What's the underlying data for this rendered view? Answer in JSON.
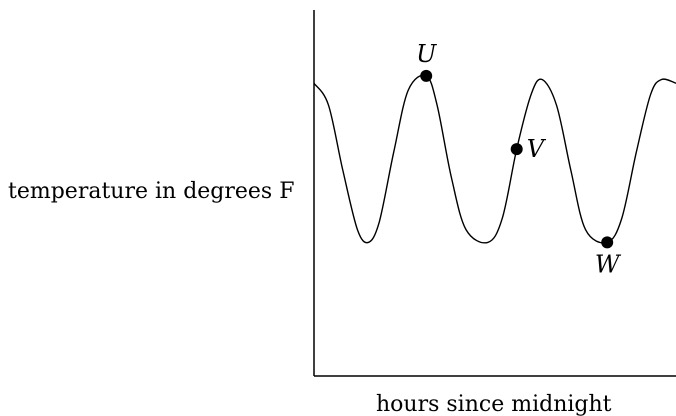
{
  "chart_data": {
    "type": "line",
    "xlabel": "hours since midnight",
    "ylabel": "temperature in degrees F",
    "curve": [
      {
        "x": 0.0,
        "y": 0.8
      },
      {
        "x": 0.4,
        "y": 0.74
      },
      {
        "x": 0.8,
        "y": 0.56
      },
      {
        "x": 1.2,
        "y": 0.4
      },
      {
        "x": 1.5,
        "y": 0.365
      },
      {
        "x": 1.8,
        "y": 0.42
      },
      {
        "x": 2.2,
        "y": 0.61
      },
      {
        "x": 2.6,
        "y": 0.78
      },
      {
        "x": 3.1,
        "y": 0.82
      },
      {
        "x": 3.4,
        "y": 0.74
      },
      {
        "x": 3.8,
        "y": 0.54
      },
      {
        "x": 4.2,
        "y": 0.4
      },
      {
        "x": 4.8,
        "y": 0.365
      },
      {
        "x": 5.2,
        "y": 0.43
      },
      {
        "x": 5.6,
        "y": 0.62
      },
      {
        "x": 6.0,
        "y": 0.77
      },
      {
        "x": 6.3,
        "y": 0.81
      },
      {
        "x": 6.7,
        "y": 0.74
      },
      {
        "x": 7.1,
        "y": 0.56
      },
      {
        "x": 7.5,
        "y": 0.4
      },
      {
        "x": 8.1,
        "y": 0.365
      },
      {
        "x": 8.5,
        "y": 0.43
      },
      {
        "x": 8.9,
        "y": 0.61
      },
      {
        "x": 9.3,
        "y": 0.77
      },
      {
        "x": 9.6,
        "y": 0.81
      },
      {
        "x": 10.0,
        "y": 0.8
      }
    ],
    "points": [
      {
        "label": "U",
        "x": 3.1,
        "y": 0.82
      },
      {
        "label": "V",
        "x": 5.6,
        "y": 0.62
      },
      {
        "label": "W",
        "x": 8.1,
        "y": 0.365
      }
    ]
  }
}
